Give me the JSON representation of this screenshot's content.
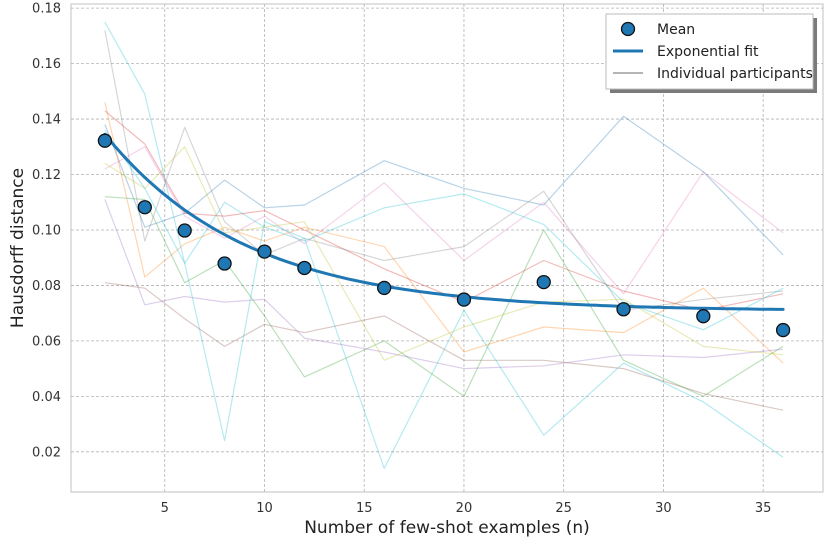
{
  "chart_data": {
    "type": "line",
    "title": "",
    "xlabel": "Number of few-shot examples (n)",
    "ylabel": "Hausdorff distance",
    "xlim": [
      0.3,
      38.0
    ],
    "ylim": [
      0.0055,
      0.1815
    ],
    "grid": true,
    "x_ticks": [
      5,
      10,
      15,
      20,
      25,
      30,
      35
    ],
    "x_tick_labels": [
      "5",
      "10",
      "15",
      "20",
      "25",
      "30",
      "35"
    ],
    "y_ticks": [
      0.02,
      0.04,
      0.06,
      0.08,
      0.1,
      0.12,
      0.14,
      0.16,
      0.18
    ],
    "y_tick_labels": [
      "0.02",
      "0.04",
      "0.06",
      "0.08",
      "0.10",
      "0.12",
      "0.14",
      "0.16",
      "0.18"
    ],
    "x": [
      2,
      4,
      6,
      8,
      10,
      12,
      16,
      20,
      24,
      28,
      32,
      36
    ],
    "legend": {
      "position": "top-right",
      "entries": [
        {
          "label": "Mean",
          "kind": "marker"
        },
        {
          "label": "Exponential fit",
          "kind": "line"
        },
        {
          "label": "Individual participants",
          "kind": "thin-line"
        }
      ]
    },
    "mean": {
      "name": "Mean",
      "color": "#1f77b4",
      "values": [
        0.1322,
        0.1082,
        0.0998,
        0.0879,
        0.0922,
        0.0863,
        0.0791,
        0.0749,
        0.0812,
        0.0714,
        0.0689,
        0.0639
      ]
    },
    "fit": {
      "name": "Exponential fit",
      "color": "#1f77b4",
      "a": 0.0708,
      "b": 0.0843,
      "k": 0.14,
      "x_range": [
        2,
        36
      ]
    },
    "participants": [
      {
        "name": "Individual participants",
        "color": "#1f77b4",
        "values": [
          0.138,
          0.101,
          0.106,
          0.118,
          0.108,
          0.109,
          0.125,
          0.115,
          0.109,
          0.141,
          0.121,
          0.091
        ]
      },
      {
        "name": "Individual participants",
        "color": "#ff7f0e",
        "values": [
          0.146,
          0.083,
          0.095,
          0.101,
          0.096,
          0.101,
          0.094,
          0.056,
          0.065,
          0.063,
          0.079,
          0.052
        ]
      },
      {
        "name": "Individual participants",
        "color": "#2ca02c",
        "values": [
          0.112,
          0.111,
          0.081,
          0.089,
          0.069,
          0.047,
          0.06,
          0.04,
          0.1,
          0.053,
          0.04,
          0.058
        ]
      },
      {
        "name": "Individual participants",
        "color": "#d62728",
        "values": [
          0.143,
          0.131,
          0.106,
          0.105,
          0.107,
          0.1,
          0.086,
          0.074,
          0.089,
          0.078,
          0.071,
          0.077
        ]
      },
      {
        "name": "Individual participants",
        "color": "#9467bd",
        "values": [
          0.111,
          0.073,
          0.076,
          0.074,
          0.075,
          0.061,
          0.056,
          0.05,
          0.051,
          0.055,
          0.054,
          0.057
        ]
      },
      {
        "name": "Individual participants",
        "color": "#8c564b",
        "values": [
          0.081,
          0.079,
          0.068,
          0.058,
          0.066,
          0.063,
          0.069,
          0.053,
          0.053,
          0.05,
          0.041,
          0.035
        ]
      },
      {
        "name": "Individual participants",
        "color": "#e377c2",
        "values": [
          0.122,
          0.13,
          0.105,
          0.097,
          0.105,
          0.095,
          0.117,
          0.089,
          0.11,
          0.077,
          0.121,
          0.099
        ]
      },
      {
        "name": "Individual participants",
        "color": "#7f7f7f",
        "values": [
          0.172,
          0.096,
          0.137,
          0.103,
          0.091,
          0.097,
          0.089,
          0.094,
          0.114,
          0.071,
          0.075,
          0.078
        ]
      },
      {
        "name": "Individual participants",
        "color": "#bcbd22",
        "values": [
          0.124,
          0.115,
          0.13,
          0.099,
          0.101,
          0.103,
          0.053,
          0.065,
          0.074,
          0.075,
          0.058,
          0.055
        ]
      },
      {
        "name": "Individual participants",
        "color": "#17becf",
        "values": [
          0.175,
          0.149,
          0.088,
          0.11,
          0.101,
          0.096,
          0.108,
          0.113,
          0.102,
          0.074,
          0.064,
          0.079
        ]
      },
      {
        "name": "Individual participants",
        "color": "#17becf",
        "values": [
          0.136,
          0.115,
          0.088,
          0.024,
          0.103,
          0.097,
          0.014,
          0.071,
          0.026,
          0.052,
          0.038,
          0.018
        ]
      }
    ]
  }
}
